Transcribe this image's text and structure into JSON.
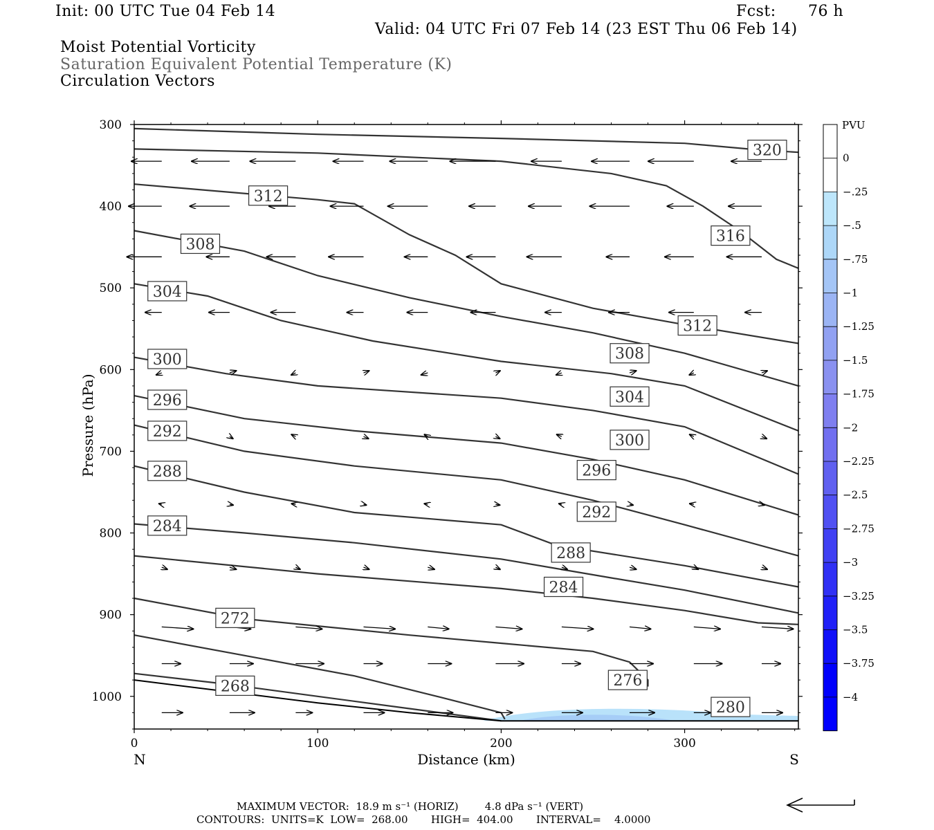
{
  "header": {
    "init": "Init: 00 UTC Tue 04 Feb 14",
    "fcst_label": "Fcst:",
    "fcst_value": "76 h",
    "valid": "Valid: 04 UTC Fri 07 Feb 14 (23 EST Thu 06 Feb 14)",
    "field1": "Moist Potential Vorticity",
    "field2": "Saturation Equivalent Potential Temperature (K)",
    "field3": "Circulation Vectors"
  },
  "footer": {
    "line1": "MAXIMUM VECTOR:  18.9 m s⁻¹ (HORIZ)        4.8 dPa s⁻¹ (VERT)",
    "line2": "CONTOURS:  UNITS=K  LOW=  268.00       HIGH=  404.00       INTERVAL=    4.0000"
  },
  "chart_data": {
    "type": "cross-section",
    "xlabel": "Distance (km)",
    "ylabel": "Pressure (hPa)",
    "xlim": [
      0,
      362
    ],
    "ylim": [
      1040,
      300
    ],
    "x_ticks": [
      0,
      100,
      200,
      300
    ],
    "y_ticks": [
      300,
      400,
      500,
      600,
      700,
      800,
      900,
      1000
    ],
    "left_end_label": "N",
    "right_end_label": "S",
    "colorbar": {
      "title": "PVU",
      "labels": [
        "0",
        "-.25",
        "-.5",
        "-.75",
        "-1",
        "-1.25",
        "-1.5",
        "-1.75",
        "-2",
        "-2.25",
        "-2.5",
        "-2.75",
        "-3",
        "-3.25",
        "-3.5",
        "-3.75",
        "-4"
      ],
      "colors": [
        "#ffffff",
        "#ffffff",
        "#bde6fb",
        "#add7f8",
        "#a4c5f6",
        "#9bb4f4",
        "#91a1f2",
        "#8a91f0",
        "#7f7ff0",
        "#716ff0",
        "#6060f0",
        "#5050f2",
        "#4040f3",
        "#3030f5",
        "#2020f7",
        "#1010f9",
        "#0000fc",
        "#0000ff"
      ]
    },
    "contours": [
      {
        "value": 320,
        "label": "320",
        "label_at": [
          345,
          331
        ],
        "points": [
          [
            0,
            305
          ],
          [
            100,
            312
          ],
          [
            200,
            317
          ],
          [
            300,
            323
          ],
          [
            340,
            331
          ],
          [
            362,
            334
          ]
        ]
      },
      {
        "value": 316,
        "label": "316",
        "label_at": [
          325,
          436
        ],
        "points": [
          [
            0,
            330
          ],
          [
            100,
            335
          ],
          [
            200,
            345
          ],
          [
            260,
            360
          ],
          [
            290,
            375
          ],
          [
            310,
            400
          ],
          [
            330,
            430
          ],
          [
            350,
            465
          ],
          [
            362,
            476
          ]
        ]
      },
      {
        "value": 312,
        "label": "312",
        "label_at": [
          73,
          387
        ],
        "points": [
          [
            0,
            373
          ],
          [
            100,
            392
          ],
          [
            120,
            397
          ],
          [
            150,
            435
          ],
          [
            175,
            460
          ],
          [
            200,
            495
          ],
          [
            250,
            525
          ],
          [
            300,
            545
          ],
          [
            362,
            568
          ]
        ]
      },
      {
        "value": 312,
        "label": "312",
        "label_at": [
          307,
          546
        ],
        "points": []
      },
      {
        "value": 308,
        "label": "308",
        "label_at": [
          36,
          446
        ],
        "points": [
          [
            0,
            430
          ],
          [
            60,
            455
          ],
          [
            100,
            485
          ],
          [
            150,
            512
          ],
          [
            200,
            535
          ],
          [
            250,
            555
          ],
          [
            300,
            580
          ],
          [
            362,
            620
          ]
        ]
      },
      {
        "value": 308,
        "label": "308",
        "label_at": [
          270,
          580
        ],
        "points": []
      },
      {
        "value": 304,
        "label": "304",
        "label_at": [
          18,
          504
        ],
        "points": [
          [
            0,
            495
          ],
          [
            40,
            510
          ],
          [
            80,
            540
          ],
          [
            130,
            565
          ],
          [
            200,
            590
          ],
          [
            260,
            605
          ],
          [
            300,
            620
          ],
          [
            362,
            675
          ]
        ]
      },
      {
        "value": 304,
        "label": "304",
        "label_at": [
          270,
          633
        ],
        "points": []
      },
      {
        "value": 300,
        "label": "300",
        "label_at": [
          18,
          587
        ],
        "points": [
          [
            0,
            585
          ],
          [
            50,
            605
          ],
          [
            100,
            620
          ],
          [
            200,
            635
          ],
          [
            250,
            650
          ],
          [
            300,
            670
          ],
          [
            362,
            728
          ]
        ]
      },
      {
        "value": 300,
        "label": "300",
        "label_at": [
          270,
          686
        ],
        "points": []
      },
      {
        "value": 296,
        "label": "296",
        "label_at": [
          18,
          637
        ],
        "points": [
          [
            0,
            632
          ],
          [
            60,
            660
          ],
          [
            120,
            675
          ],
          [
            200,
            690
          ],
          [
            250,
            710
          ],
          [
            300,
            735
          ],
          [
            362,
            778
          ]
        ]
      },
      {
        "value": 296,
        "label": "296",
        "label_at": [
          252,
          723
        ],
        "points": []
      },
      {
        "value": 292,
        "label": "292",
        "label_at": [
          18,
          675
        ],
        "points": [
          [
            0,
            668
          ],
          [
            60,
            700
          ],
          [
            120,
            718
          ],
          [
            200,
            735
          ],
          [
            250,
            760
          ],
          [
            300,
            790
          ],
          [
            362,
            828
          ]
        ]
      },
      {
        "value": 292,
        "label": "292",
        "label_at": [
          252,
          774
        ],
        "points": []
      },
      {
        "value": 288,
        "label": "288",
        "label_at": [
          18,
          724
        ],
        "points": [
          [
            0,
            718
          ],
          [
            60,
            750
          ],
          [
            120,
            775
          ],
          [
            200,
            790
          ],
          [
            230,
            815
          ],
          [
            300,
            840
          ],
          [
            362,
            866
          ]
        ]
      },
      {
        "value": 288,
        "label": "288",
        "label_at": [
          238,
          824
        ],
        "points": []
      },
      {
        "value": 284,
        "label": "284",
        "label_at": [
          18,
          791
        ],
        "points": [
          [
            0,
            789
          ],
          [
            60,
            800
          ],
          [
            120,
            812
          ],
          [
            200,
            832
          ],
          [
            260,
            855
          ],
          [
            300,
            870
          ],
          [
            362,
            898
          ]
        ]
      },
      {
        "value": 284,
        "label": "284",
        "label_at": [
          234,
          866
        ],
        "points": []
      },
      {
        "value": 280,
        "label": "280",
        "label_at": [
          325,
          1013
        ],
        "points": [
          [
            0,
            828
          ],
          [
            100,
            850
          ],
          [
            200,
            868
          ],
          [
            250,
            880
          ],
          [
            300,
            895
          ],
          [
            340,
            910
          ],
          [
            362,
            912
          ]
        ]
      },
      {
        "value": 276,
        "label": "276",
        "label_at": [
          269,
          980
        ],
        "points": [
          [
            0,
            880
          ],
          [
            60,
            905
          ],
          [
            150,
            925
          ],
          [
            200,
            935
          ],
          [
            250,
            945
          ],
          [
            270,
            958
          ],
          [
            280,
            980
          ],
          [
            280,
            988
          ]
        ]
      },
      {
        "value": 272,
        "label": "272",
        "label_at": [
          55,
          904
        ],
        "points": [
          [
            0,
            925
          ],
          [
            60,
            950
          ],
          [
            120,
            975
          ],
          [
            165,
            1000
          ],
          [
            200,
            1020
          ],
          [
            202,
            1028
          ]
        ]
      },
      {
        "value": 268,
        "label": "268",
        "label_at": [
          55,
          987
        ],
        "points": [
          [
            0,
            972
          ],
          [
            50,
            985
          ],
          [
            100,
            1000
          ],
          [
            150,
            1015
          ],
          [
            200,
            1030
          ]
        ]
      }
    ],
    "surface": {
      "points": [
        [
          0,
          980
        ],
        [
          50,
          994
        ],
        [
          100,
          1008
        ],
        [
          150,
          1020
        ],
        [
          200,
          1030
        ],
        [
          362,
          1030
        ]
      ]
    },
    "mpv_negative": {
      "value_range": "0 to -0.5 PVU",
      "location_km": [
        190,
        362
      ],
      "pressure_hPa": [
        1015,
        1030
      ]
    },
    "vector_scale_label": "18.9 m s-1"
  }
}
